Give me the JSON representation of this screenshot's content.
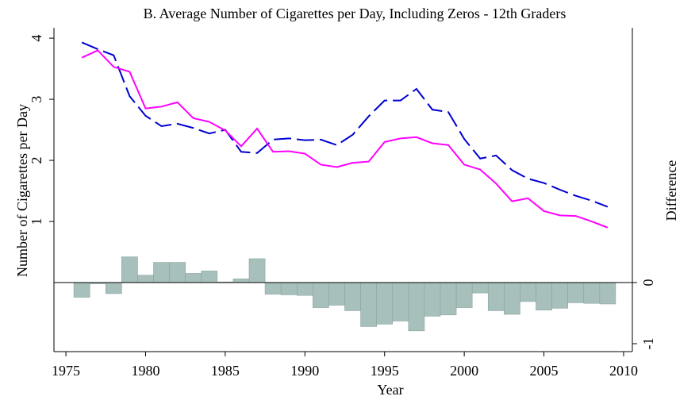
{
  "chart_data": {
    "type": "line",
    "title": "B. Average Number of Cigarettes per Day, Including Zeros - 12th Graders",
    "xlabel": "Year",
    "ylabel": "Number of Cigarettes per Day",
    "y2label": "Difference",
    "x": [
      1976,
      1977,
      1978,
      1979,
      1980,
      1981,
      1982,
      1983,
      1984,
      1985,
      1986,
      1987,
      1988,
      1989,
      1990,
      1991,
      1992,
      1993,
      1994,
      1995,
      1996,
      1997,
      1998,
      1999,
      2000,
      2001,
      2002,
      2003,
      2004,
      2005,
      2006,
      2007,
      2008,
      2009
    ],
    "series": [
      {
        "type": "line",
        "color": "#0000d0",
        "dash": "dashed",
        "values": [
          3.93,
          3.82,
          3.72,
          3.05,
          2.73,
          2.56,
          2.6,
          2.53,
          2.44,
          2.5,
          2.14,
          2.12,
          2.34,
          2.36,
          2.33,
          2.34,
          2.25,
          2.42,
          2.72,
          2.98,
          2.98,
          3.17,
          2.83,
          2.79,
          2.35,
          2.03,
          2.08,
          1.84,
          1.7,
          1.63,
          1.52,
          1.42,
          1.34,
          1.24
        ]
      },
      {
        "type": "line",
        "color": "#ff00ff",
        "dash": "solid",
        "values": [
          3.68,
          3.8,
          3.53,
          3.45,
          2.85,
          2.88,
          2.95,
          2.69,
          2.63,
          2.49,
          2.23,
          2.52,
          2.14,
          2.15,
          2.11,
          1.93,
          1.89,
          1.96,
          1.98,
          2.3,
          2.36,
          2.38,
          2.28,
          2.25,
          1.93,
          1.85,
          1.62,
          1.33,
          1.38,
          1.17,
          1.1,
          1.09,
          1.0,
          0.9
        ]
      },
      {
        "type": "bar",
        "axis": "y2",
        "color": "#a7c0bb",
        "values": [
          -0.24,
          -0.02,
          -0.18,
          0.42,
          0.12,
          0.33,
          0.33,
          0.15,
          0.19,
          0.01,
          0.06,
          0.39,
          -0.19,
          -0.2,
          -0.21,
          -0.41,
          -0.37,
          -0.46,
          -0.72,
          -0.68,
          -0.63,
          -0.79,
          -0.55,
          -0.53,
          -0.41,
          -0.17,
          -0.46,
          -0.52,
          -0.31,
          -0.45,
          -0.42,
          -0.33,
          -0.34,
          -0.35
        ]
      }
    ],
    "xlim": [
      1974.25,
      2010.55
    ],
    "xticks": [
      1975,
      1980,
      1985,
      1990,
      1995,
      2000,
      2005,
      2010
    ],
    "ylim": [
      -1.13,
      4.17
    ],
    "yticks": [
      1,
      2,
      3,
      4
    ],
    "y2lim": [
      -1.13,
      4.17
    ],
    "y2ticks": [
      -1,
      0
    ],
    "zero_line": true
  }
}
